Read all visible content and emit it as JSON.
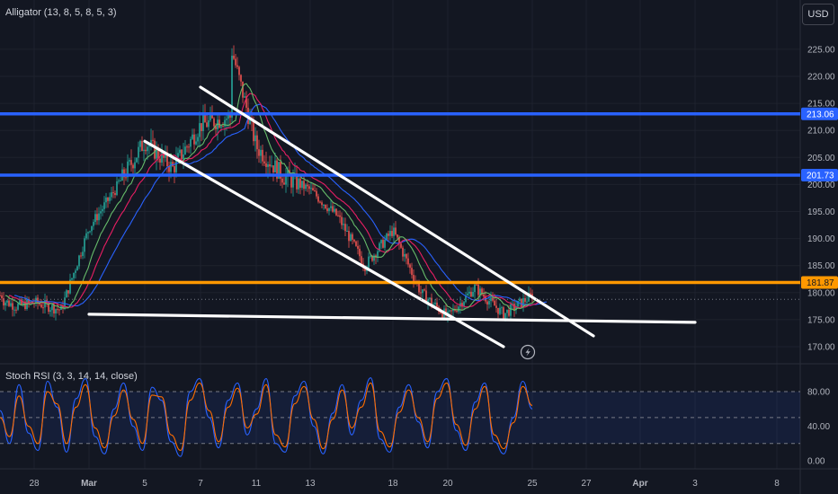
{
  "indicators": {
    "alligator": "Alligator (13, 8, 5, 8, 5, 3)",
    "stoch_rsi": "Stoch RSI (3, 3, 14, 14, close)"
  },
  "currency": "USD",
  "colors": {
    "background": "#131722",
    "up_candle": "#26a69a",
    "down_candle": "#ef5350",
    "jaw": "#2962ff",
    "teeth": "#e91e63",
    "lips": "#66bb6a",
    "resistance": "#2962ff",
    "support": "#ff9800",
    "rsi_k": "#2962ff",
    "rsi_d": "#ff6d00",
    "rsi_band": "#2962ff",
    "trendline": "#ffffff"
  },
  "chart_data": [
    {
      "type": "line",
      "title": "",
      "ylim": [
        166,
        231
      ],
      "y_ticks": [
        "170.00",
        "175.00",
        "180.00",
        "185.00",
        "190.00",
        "195.00",
        "200.00",
        "205.00",
        "210.00",
        "215.00",
        "220.00",
        "225.00"
      ],
      "x_ticks": [
        "28",
        "Mar",
        "5",
        "7",
        "11",
        "13",
        "18",
        "20",
        "25",
        "27",
        "Apr",
        "3",
        "8"
      ],
      "price_path": [
        {
          "x": "26 Feb",
          "y": 178.5
        },
        {
          "x": "27 Feb",
          "y": 177.5
        },
        {
          "x": "28 Feb",
          "y": 178.2
        },
        {
          "x": "29 Feb",
          "y": 176.8
        },
        {
          "x": "Mar",
          "y": 192
        },
        {
          "x": "4 Mar",
          "y": 199
        },
        {
          "x": "5 Mar",
          "y": 208
        },
        {
          "x": "6 Mar",
          "y": 203
        },
        {
          "x": "7 Mar",
          "y": 211
        },
        {
          "x": "8 Mar",
          "y": 212.5
        },
        {
          "x": "8 Mar",
          "y": 226
        },
        {
          "x": "11 Mar",
          "y": 207
        },
        {
          "x": "12 Mar",
          "y": 201.5
        },
        {
          "x": "13 Mar",
          "y": 199
        },
        {
          "x": "14 Mar",
          "y": 194
        },
        {
          "x": "15 Mar",
          "y": 185
        },
        {
          "x": "18 Mar",
          "y": 191.5
        },
        {
          "x": "19 Mar",
          "y": 180
        },
        {
          "x": "20 Mar",
          "y": 175.5
        },
        {
          "x": "21 Mar",
          "y": 181
        },
        {
          "x": "22 Mar",
          "y": 176
        },
        {
          "x": "25 Mar",
          "y": 179.5
        }
      ],
      "horizontal_lines": [
        {
          "label": "213.06",
          "value": 213.06,
          "role": "resistance"
        },
        {
          "label": "201.73",
          "value": 201.73,
          "role": "resistance"
        },
        {
          "label": "181.87",
          "value": 181.87,
          "role": "support"
        }
      ],
      "trendlines": [
        {
          "from": {
            "x": "7 Mar",
            "y": 218
          },
          "to": {
            "x": "27 Mar",
            "y": 172
          }
        },
        {
          "from": {
            "x": "5 Mar",
            "y": 208
          },
          "to": {
            "x": "22 Mar",
            "y": 170
          }
        },
        {
          "from": {
            "x": "Mar",
            "y": 176
          },
          "to": {
            "x": "2 Apr",
            "y": 174.5
          }
        }
      ]
    },
    {
      "type": "line",
      "title": "",
      "ylim": [
        -5,
        105
      ],
      "y_ticks": [
        "0.00",
        "40.00",
        "80.00"
      ],
      "band": [
        20,
        80
      ],
      "series": [
        {
          "values": [
            58,
            20,
            88,
            32,
            12,
            92,
            62,
            10,
            72,
            95,
            28,
            8,
            60,
            90,
            40,
            12,
            85,
            70,
            22,
            5,
            80,
            95,
            50,
            15,
            70,
            90,
            30,
            60,
            95,
            20,
            10,
            75,
            92,
            40,
            8,
            55,
            88,
            30,
            70,
            96,
            25,
            10,
            62,
            88,
            45,
            15,
            80,
            95,
            35,
            12,
            68,
            90,
            22,
            8,
            50,
            92,
            60
          ]
        },
        {
          "values": [
            50,
            28,
            75,
            40,
            20,
            80,
            66,
            20,
            62,
            88,
            38,
            15,
            52,
            82,
            48,
            20,
            76,
            74,
            30,
            12,
            70,
            90,
            58,
            22,
            62,
            84,
            38,
            54,
            88,
            30,
            16,
            66,
            86,
            48,
            14,
            48,
            82,
            38,
            62,
            90,
            34,
            16,
            56,
            82,
            50,
            22,
            72,
            90,
            42,
            18,
            60,
            86,
            30,
            14,
            44,
            86,
            64
          ]
        }
      ]
    }
  ]
}
